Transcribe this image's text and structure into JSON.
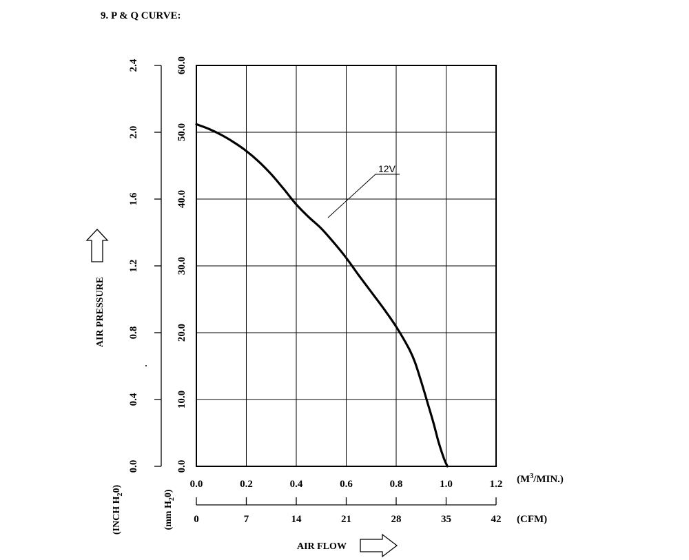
{
  "heading": "9. P & Q CURVE:",
  "chart_data": {
    "type": "line",
    "title": "P & Q CURVE",
    "xlabel": "AIR FLOW",
    "ylabel": "AIR PRESSURE",
    "x_unit_primary": "(M³/MIN.)",
    "x_unit_primary_parts": {
      "pre": "(M",
      "sup": "3",
      "post": "/MIN.)"
    },
    "x_unit_secondary": "(CFM)",
    "y_unit_inch": "(INCH H₂0)",
    "y_unit_inch_parts": {
      "pre": "(INCH H",
      "sub": "2",
      "post": "0)"
    },
    "y_unit_mm": "(mm H₂0)",
    "y_unit_mm_parts": {
      "pre": "(mm H",
      "sub": "2",
      "post": "0)"
    },
    "xlim": [
      0,
      1.2
    ],
    "ylim_mm": [
      0,
      60
    ],
    "ylim_inch": [
      0,
      2.4
    ],
    "x_ticks": [
      "0.0",
      "0.2",
      "0.4",
      "0.6",
      "0.8",
      "1.0",
      "1.2"
    ],
    "x_ticks_cfm": [
      "0",
      "7",
      "14",
      "21",
      "28",
      "35",
      "42"
    ],
    "y_ticks_mm": [
      "0.0",
      "10.0",
      "20.0",
      "30.0",
      "40.0",
      "50.0",
      "60.0"
    ],
    "y_ticks_inch": [
      "0.0",
      "0.4",
      "0.8",
      "1.2",
      "1.6",
      "2.0",
      "2.4"
    ],
    "grid": true,
    "series": [
      {
        "name": "12V",
        "x": [
          0.0,
          0.05,
          0.1,
          0.15,
          0.2,
          0.25,
          0.3,
          0.35,
          0.4,
          0.45,
          0.5,
          0.55,
          0.6,
          0.65,
          0.7,
          0.75,
          0.8,
          0.85,
          0.875,
          0.9,
          0.925,
          0.95,
          0.97,
          0.99,
          1.005
        ],
        "y": [
          51.2,
          50.5,
          49.6,
          48.5,
          47.2,
          45.6,
          43.7,
          41.5,
          39.2,
          37.3,
          35.6,
          33.5,
          31.2,
          28.6,
          26.1,
          23.6,
          20.9,
          17.7,
          15.6,
          12.7,
          9.6,
          6.4,
          3.6,
          1.3,
          0.0
        ]
      }
    ]
  }
}
